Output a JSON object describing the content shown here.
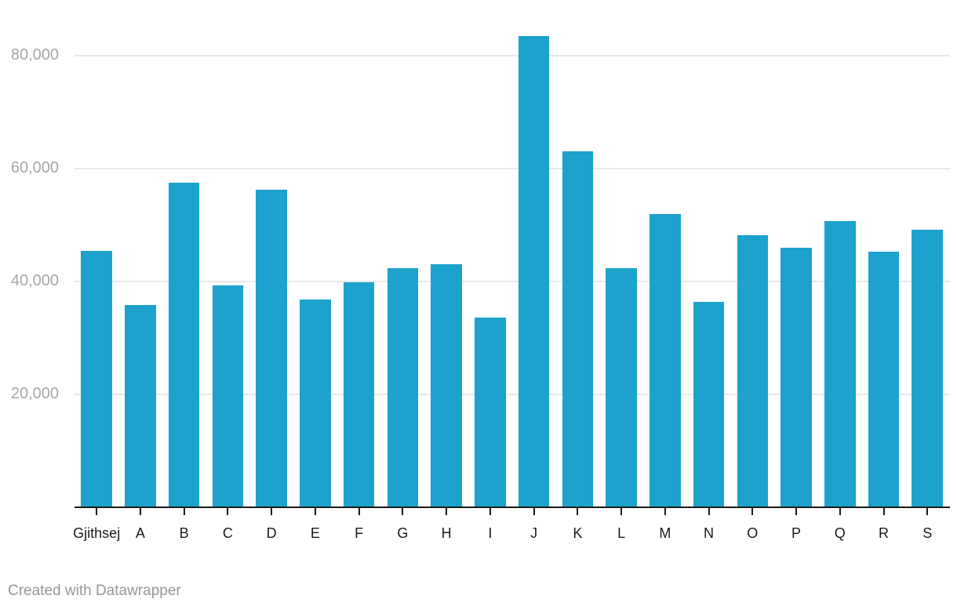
{
  "chart_data": {
    "type": "bar",
    "categories": [
      "Gjithsej",
      "A",
      "B",
      "C",
      "D",
      "E",
      "F",
      "G",
      "H",
      "I",
      "J",
      "K",
      "L",
      "M",
      "N",
      "O",
      "P",
      "Q",
      "R",
      "S"
    ],
    "values": [
      45400,
      35800,
      57500,
      39300,
      56300,
      36800,
      39800,
      42300,
      43000,
      33600,
      83500,
      63000,
      42300,
      51900,
      36400,
      48200,
      46000,
      50700,
      45300,
      49200
    ],
    "title": "",
    "xlabel": "",
    "ylabel": "",
    "ylim": [
      0,
      86500
    ],
    "yticks": [
      20000,
      40000,
      60000,
      80000
    ],
    "ytick_labels": [
      "20,000",
      "40,000",
      "60,000",
      "80,000"
    ],
    "grid": "horizontal",
    "legend": "none",
    "bar_color": "#1CA2CC"
  },
  "footer": {
    "attribution": "Created with Datawrapper"
  },
  "colors": {
    "bar": "#1CA2CC",
    "gridline": "#E8E8E8",
    "axis": "#1A1A1A",
    "x_label": "#1A1A1A",
    "y_label": "#A6A6A6",
    "footer_text": "#979797",
    "background": "#FFFFFF"
  }
}
